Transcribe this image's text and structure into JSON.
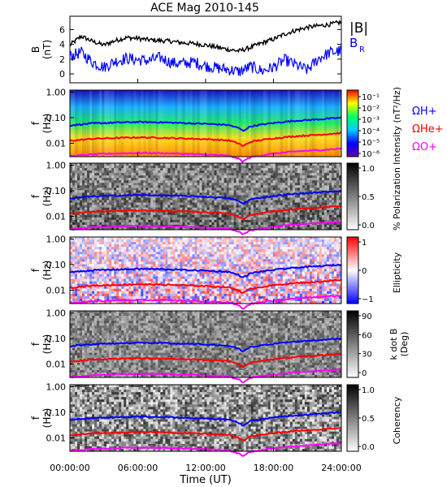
{
  "title": "ACE Mag 2010-145",
  "xlabel": "Time (UT)",
  "x_ticks": [
    "00:00:00",
    "06:00:00",
    "12:00:00",
    "18:00:00",
    "24:00:00"
  ],
  "colors": {
    "total_field": "#000000",
    "radial_field": "#0000ff",
    "h_gyro": "#0000ff",
    "he_gyro": "#ff0000",
    "o_gyro": "#ff00ff"
  },
  "chart_data": [
    {
      "type": "line",
      "panel": "B",
      "ylabel_line1": "B",
      "ylabel_line2": "(nT)",
      "ylim": [
        -1.2,
        7.8
      ],
      "y_ticks": [
        "0",
        "2",
        "4",
        "6"
      ],
      "y_tick_values": [
        0,
        2,
        4,
        6
      ],
      "legend": {
        "total": "|B|",
        "radial": "B",
        "radial_sub": "R"
      },
      "x_hours": [
        0,
        1,
        2,
        3,
        4,
        5,
        6,
        7,
        8,
        9,
        10,
        11,
        12,
        13,
        14,
        15,
        16,
        17,
        18,
        19,
        20,
        21,
        22,
        23,
        24
      ],
      "series": [
        {
          "values": [
            3.9,
            5.1,
            4.4,
            3.9,
            4.5,
            4.9,
            4.8,
            4.6,
            4.5,
            4.4,
            4.2,
            4.1,
            3.9,
            3.6,
            3.3,
            3.1,
            3.6,
            4.2,
            4.7,
            5.4,
            5.9,
            6.3,
            6.5,
            6.7,
            7.0
          ]
        },
        {
          "values": [
            2.4,
            2.9,
            1.6,
            0.9,
            1.7,
            2.1,
            1.9,
            1.8,
            2.2,
            1.5,
            1.4,
            1.6,
            1.1,
            0.8,
            0.6,
            0.3,
            1.0,
            0.4,
            0.9,
            1.9,
            1.2,
            0.5,
            2.1,
            2.9,
            3.1
          ]
        }
      ]
    },
    {
      "type": "heatmap",
      "panel": "intensity",
      "ylabel_line1": "f",
      "ylabel_line2": "(Hz)",
      "y_ticks": [
        "1.00",
        "0.10",
        "0.01"
      ],
      "y_tick_values": [
        1.0,
        0.1,
        0.01
      ],
      "ylim": [
        0.003,
        1.2
      ],
      "yscale": "log",
      "colorbar_label": "Intensity (nT²/Hz)",
      "colorbar_ticks": [
        "10⁻¹",
        "10⁻²",
        "10⁻³",
        "10⁻⁴",
        "10⁻⁵",
        "10⁻⁶"
      ],
      "colorbar_scale": "jet",
      "gyro_legend": [
        "ΩH+",
        "ΩHe+",
        "ΩO+"
      ]
    },
    {
      "type": "heatmap",
      "panel": "polarization",
      "ylabel_line1": "f",
      "ylabel_line2": "(Hz)",
      "y_ticks": [
        "1.00",
        "0.10",
        "0.01"
      ],
      "y_tick_values": [
        1.0,
        0.1,
        0.01
      ],
      "yscale": "log",
      "colorbar_label": "% Polarization",
      "colorbar_ticks": [
        "1.0",
        "0.5",
        "0.0"
      ],
      "colorbar_scale": "gray"
    },
    {
      "type": "heatmap",
      "panel": "ellipticity",
      "ylabel_line1": "f",
      "ylabel_line2": "(Hz)",
      "y_ticks": [
        "1.00",
        "0.10",
        "0.01"
      ],
      "y_tick_values": [
        1.0,
        0.1,
        0.01
      ],
      "yscale": "log",
      "colorbar_label": "Ellipticity",
      "colorbar_ticks": [
        "1",
        "0",
        "−1"
      ],
      "colorbar_scale": "red-white-blue"
    },
    {
      "type": "heatmap",
      "panel": "kdotb",
      "ylabel_line1": "f",
      "ylabel_line2": "(Hz)",
      "y_ticks": [
        "1.00",
        "0.10",
        "0.01"
      ],
      "y_tick_values": [
        1.0,
        0.1,
        0.01
      ],
      "yscale": "log",
      "colorbar_label_line1": "k dot B",
      "colorbar_label_line2": "(Deg)",
      "colorbar_ticks": [
        "90",
        "60",
        "30",
        "0"
      ],
      "colorbar_scale": "gray"
    },
    {
      "type": "heatmap",
      "panel": "coherency",
      "ylabel_line1": "f",
      "ylabel_line2": "(Hz)",
      "y_ticks": [
        "1.00",
        "0.10",
        "0.01"
      ],
      "y_tick_values": [
        1.0,
        0.1,
        0.01
      ],
      "yscale": "log",
      "colorbar_label": "Coherency",
      "colorbar_ticks": [
        "1.0",
        "0.5",
        "0.0"
      ],
      "colorbar_scale": "gray"
    }
  ],
  "gyrofrequencies": {
    "x_hours": [
      0,
      2,
      4,
      6,
      8,
      10,
      12,
      14,
      15,
      15.3,
      16,
      18,
      20,
      22,
      24
    ],
    "h_plus_hz": [
      0.05,
      0.06,
      0.064,
      0.068,
      0.066,
      0.062,
      0.058,
      0.052,
      0.038,
      0.03,
      0.046,
      0.062,
      0.076,
      0.086,
      0.1
    ],
    "he_plus_hz": [
      0.0125,
      0.015,
      0.016,
      0.017,
      0.0165,
      0.0155,
      0.0145,
      0.013,
      0.0095,
      0.0075,
      0.0115,
      0.0155,
      0.019,
      0.0215,
      0.025
    ],
    "o_plus_hz": [
      0.0031,
      0.0037,
      0.004,
      0.0042,
      0.0041,
      0.0039,
      0.0036,
      0.0033,
      0.0024,
      0.0019,
      0.0029,
      0.0039,
      0.0048,
      0.0054,
      0.0062
    ]
  }
}
